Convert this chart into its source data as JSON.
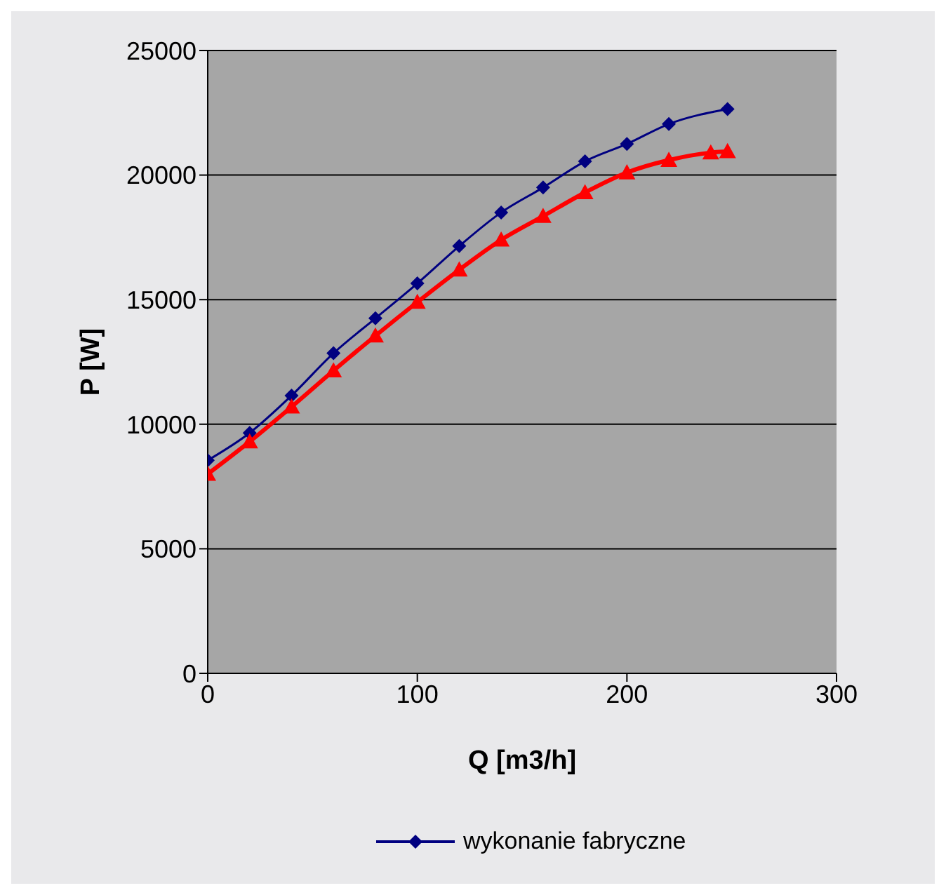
{
  "chart_data": {
    "type": "line",
    "xlabel": "Q [m3/h]",
    "ylabel": "P [W]",
    "xlim": [
      0,
      300
    ],
    "xticks": [
      0,
      100,
      200,
      300
    ],
    "ylim": [
      0,
      25000
    ],
    "yticks": [
      0,
      5000,
      10000,
      15000,
      20000,
      25000
    ],
    "grid": "y",
    "legend": "bottom",
    "line_style": "solid",
    "series": [
      {
        "name": "wykonanie fabryczne",
        "color": "#000080",
        "marker": "diamond",
        "x": [
          0,
          20,
          40,
          60,
          80,
          100,
          120,
          140,
          160,
          180,
          200,
          220,
          248
        ],
        "values": [
          8550,
          9650,
          11150,
          12850,
          14250,
          15650,
          17150,
          18500,
          19500,
          20550,
          21250,
          22050,
          22650
        ]
      },
      {
        "color": "#ff0000",
        "marker": "triangle",
        "x": [
          0,
          20,
          40,
          60,
          80,
          100,
          120,
          140,
          160,
          180,
          200,
          220,
          240,
          248
        ],
        "values": [
          8000,
          9300,
          10700,
          12150,
          13550,
          14900,
          16200,
          17400,
          18350,
          19300,
          20100,
          20600,
          20900,
          20950
        ]
      }
    ]
  }
}
